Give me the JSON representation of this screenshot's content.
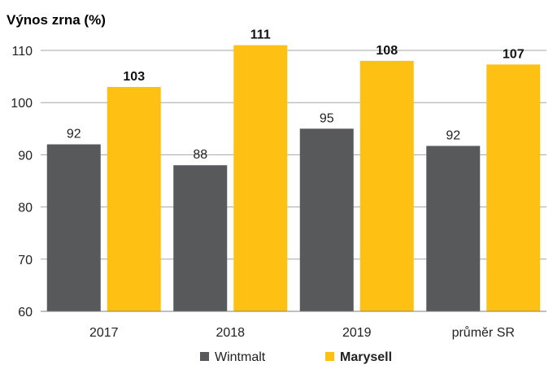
{
  "chart_data": {
    "type": "bar",
    "title": "",
    "ylabel": "Výnos zrna (%)",
    "xlabel": "",
    "categories": [
      "2017",
      "2018",
      "2019",
      "průměr SR"
    ],
    "ylim": [
      60,
      110
    ],
    "yticks": [
      60,
      70,
      80,
      90,
      100,
      110
    ],
    "grid": true,
    "legend": "bottom",
    "series": [
      {
        "name": "Wintmalt",
        "color": "#58595b",
        "values": [
          92,
          88,
          95,
          91.7
        ],
        "labels": [
          "92",
          "88",
          "95",
          "92"
        ],
        "bold_labels": false
      },
      {
        "name": "Marysell",
        "color": "#fdc013",
        "values": [
          103,
          111,
          108,
          107.3
        ],
        "labels": [
          "103",
          "111",
          "108",
          "107"
        ],
        "bold_labels": true
      }
    ]
  }
}
